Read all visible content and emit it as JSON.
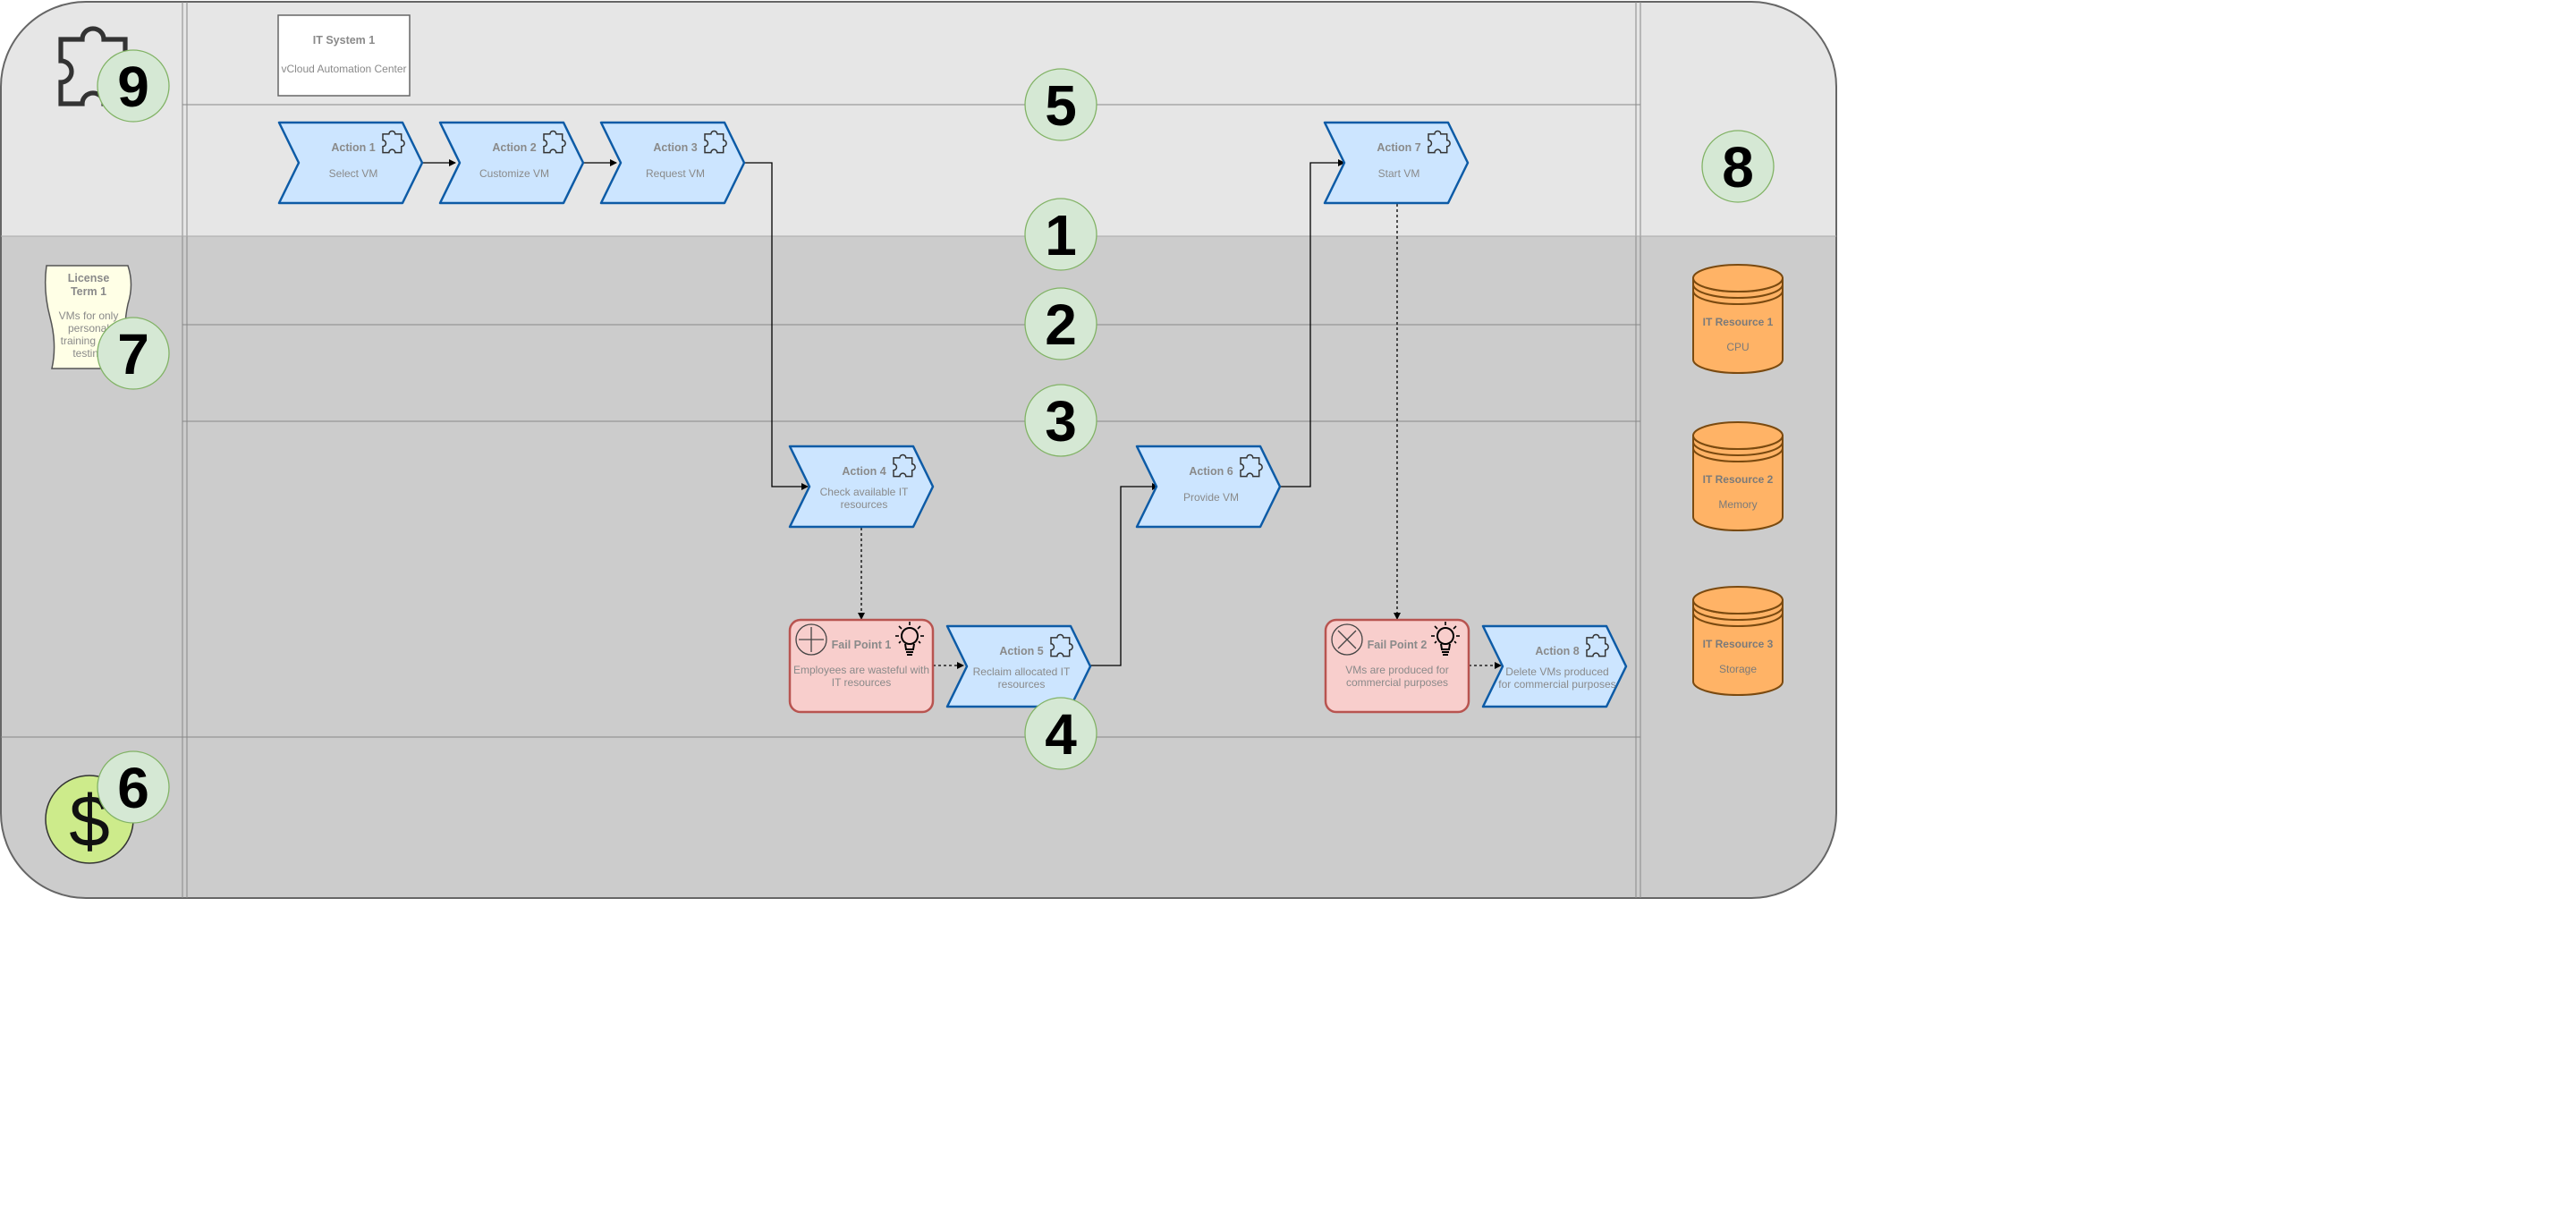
{
  "colors": {
    "action_fill": "#cce5ff",
    "action_stroke": "#0d5ba6",
    "failpoint_fill": "#f8cecc",
    "failpoint_stroke": "#b85450",
    "resource_fill": "#ffb366",
    "resource_stroke": "#7a4a10",
    "badge_fill": "#d5e8d4",
    "badge_stroke": "#82b366",
    "lane_top": "#e6e6e6",
    "lane_mid": "#cccccc",
    "money_fill": "#cdeb8b",
    "license_fill": "#ffffe6"
  },
  "system": {
    "title": "IT System 1",
    "subtitle": "vCloud Automation Center"
  },
  "license": {
    "title_line1": "License",
    "title_line2": "Term 1",
    "text_lines": [
      "VMs for only",
      "personal",
      "training and",
      "testing"
    ]
  },
  "actions": [
    {
      "id": "a1",
      "title": "Action 1",
      "sub": [
        "Select VM"
      ]
    },
    {
      "id": "a2",
      "title": "Action 2",
      "sub": [
        "Customize VM"
      ]
    },
    {
      "id": "a3",
      "title": "Action 3",
      "sub": [
        "Request VM"
      ]
    },
    {
      "id": "a4",
      "title": "Action 4",
      "sub": [
        "Check available IT",
        "resources"
      ]
    },
    {
      "id": "a5",
      "title": "Action 5",
      "sub": [
        "Reclaim allocated IT",
        "resources"
      ]
    },
    {
      "id": "a6",
      "title": "Action 6",
      "sub": [
        "Provide VM"
      ]
    },
    {
      "id": "a7",
      "title": "Action 7",
      "sub": [
        "Start VM"
      ]
    },
    {
      "id": "a8",
      "title": "Action 8",
      "sub": [
        "Delete VMs produced",
        "for commercial purposes"
      ]
    }
  ],
  "fail_points": [
    {
      "id": "f1",
      "title": "Fail Point 1",
      "sub": [
        "Employees are wasteful with",
        "IT resources"
      ],
      "icon": "plus-circle-icon"
    },
    {
      "id": "f2",
      "title": "Fail Point 2",
      "sub": [
        "VMs are produced for",
        "commercial purposes"
      ],
      "icon": "x-circle-icon"
    }
  ],
  "resources": [
    {
      "id": "r1",
      "title": "IT Resource 1",
      "sub": "CPU"
    },
    {
      "id": "r2",
      "title": "IT Resource 2",
      "sub": "Memory"
    },
    {
      "id": "r3",
      "title": "IT Resource 3",
      "sub": "Storage"
    }
  ],
  "badges": [
    "1",
    "2",
    "3",
    "4",
    "5",
    "6",
    "7",
    "8",
    "9"
  ],
  "icons": [
    "puzzle-icon",
    "lightbulb-icon",
    "dollar-icon",
    "database-icon"
  ]
}
